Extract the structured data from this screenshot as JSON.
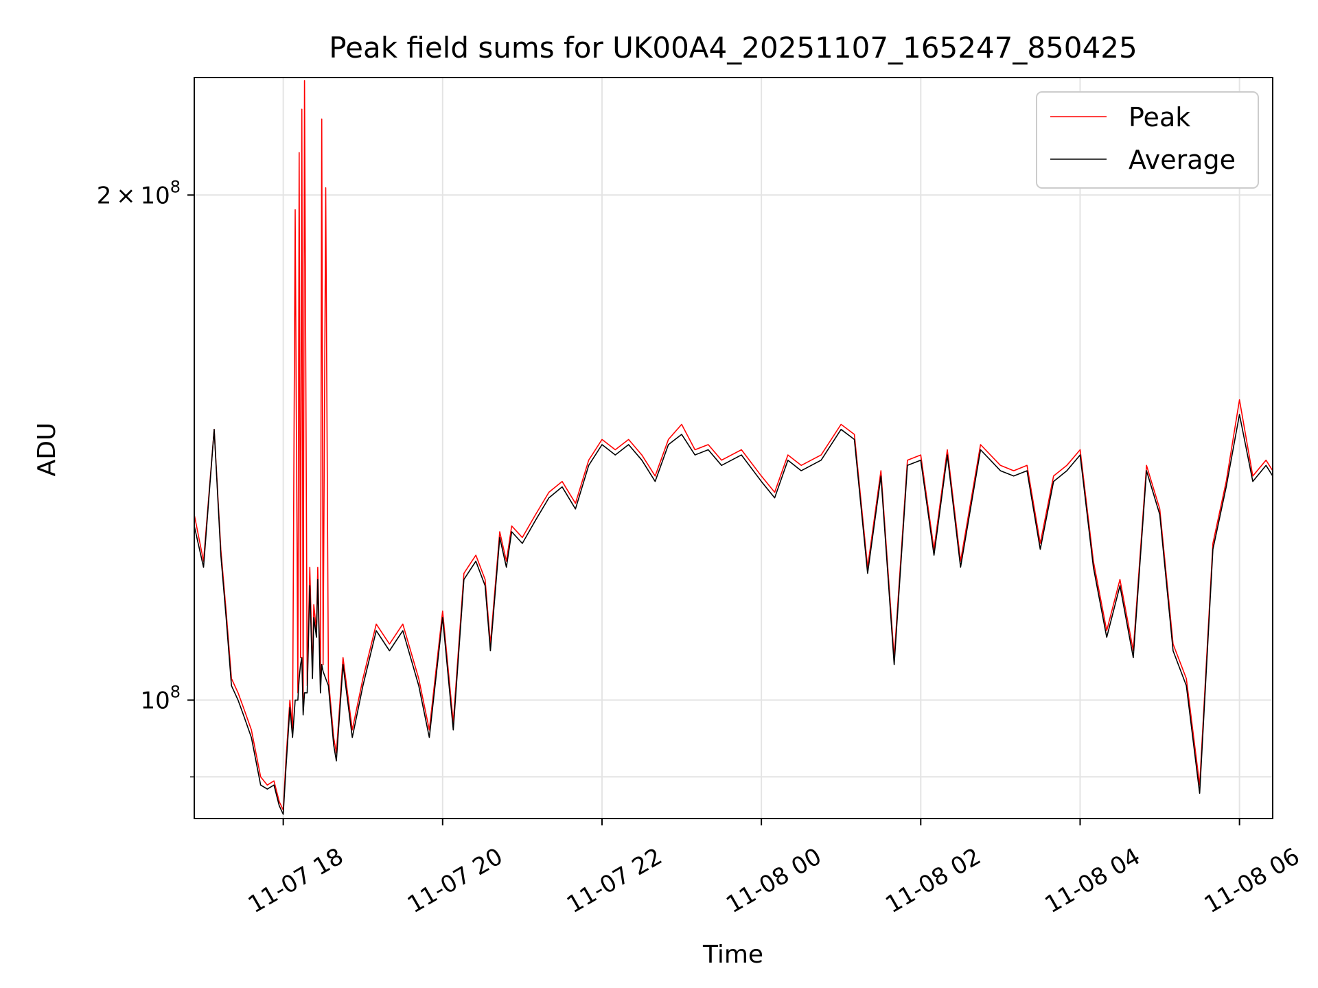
{
  "chart_data": {
    "type": "line",
    "title": "Peak field sums for UK00A4_20251107_165247_850425",
    "xlabel": "Time",
    "ylabel": "ADU",
    "y_scale": "log",
    "xlim": [
      "2025-11-07 16:53",
      "2025-11-08 06:25"
    ],
    "ylim": [
      85000000,
      235000000
    ],
    "grid": true,
    "legend_position": "top-right",
    "x_ticks": [
      {
        "value": "2025-11-07 18:00",
        "label": "11-07 18"
      },
      {
        "value": "2025-11-07 20:00",
        "label": "11-07 20"
      },
      {
        "value": "2025-11-07 22:00",
        "label": "11-07 22"
      },
      {
        "value": "2025-11-08 00:00",
        "label": "11-08 00"
      },
      {
        "value": "2025-11-08 02:00",
        "label": "11-08 02"
      },
      {
        "value": "2025-11-08 04:00",
        "label": "11-08 04"
      },
      {
        "value": "2025-11-08 06:00",
        "label": "11-08 06"
      }
    ],
    "y_ticks_major": [
      {
        "value": 100000000,
        "base": "10",
        "exponent": "8",
        "mantissa": ""
      },
      {
        "value": 200000000,
        "base": "10",
        "exponent": "8",
        "mantissa": "2"
      }
    ],
    "y_ticks_minor": [
      90000000
    ],
    "series": [
      {
        "name": "Peak",
        "color": "#ff0000",
        "x": [
          "2025-11-07 16:53",
          "2025-11-07 17:00",
          "2025-11-07 17:08",
          "2025-11-07 17:13",
          "2025-11-07 17:17",
          "2025-11-07 17:21",
          "2025-11-07 17:26",
          "2025-11-07 17:30",
          "2025-11-07 17:36",
          "2025-11-07 17:43",
          "2025-11-07 17:48",
          "2025-11-07 17:53",
          "2025-11-07 17:57",
          "2025-11-07 18:00",
          "2025-11-07 18:02",
          "2025-11-07 18:05",
          "2025-11-07 18:07",
          "2025-11-07 18:09",
          "2025-11-07 18:11",
          "2025-11-07 18:12",
          "2025-11-07 18:13",
          "2025-11-07 18:14",
          "2025-11-07 18:15",
          "2025-11-07 18:16",
          "2025-11-07 18:18",
          "2025-11-07 18:20",
          "2025-11-07 18:22",
          "2025-11-07 18:23",
          "2025-11-07 18:25",
          "2025-11-07 18:26",
          "2025-11-07 18:28",
          "2025-11-07 18:29",
          "2025-11-07 18:30",
          "2025-11-07 18:32",
          "2025-11-07 18:34",
          "2025-11-07 18:38",
          "2025-11-07 18:40",
          "2025-11-07 18:45",
          "2025-11-07 18:52",
          "2025-11-07 19:00",
          "2025-11-07 19:10",
          "2025-11-07 19:20",
          "2025-11-07 19:30",
          "2025-11-07 19:42",
          "2025-11-07 19:50",
          "2025-11-07 20:00",
          "2025-11-07 20:08",
          "2025-11-07 20:16",
          "2025-11-07 20:25",
          "2025-11-07 20:32",
          "2025-11-07 20:36",
          "2025-11-07 20:43",
          "2025-11-07 20:48",
          "2025-11-07 20:52",
          "2025-11-07 21:00",
          "2025-11-07 21:10",
          "2025-11-07 21:20",
          "2025-11-07 21:30",
          "2025-11-07 21:40",
          "2025-11-07 21:50",
          "2025-11-07 22:00",
          "2025-11-07 22:10",
          "2025-11-07 22:20",
          "2025-11-07 22:30",
          "2025-11-07 22:40",
          "2025-11-07 22:50",
          "2025-11-07 23:00",
          "2025-11-07 23:10",
          "2025-11-07 23:20",
          "2025-11-07 23:30",
          "2025-11-07 23:45",
          "2025-11-08 00:00",
          "2025-11-08 00:10",
          "2025-11-08 00:20",
          "2025-11-08 00:30",
          "2025-11-08 00:45",
          "2025-11-08 01:00",
          "2025-11-08 01:10",
          "2025-11-08 01:20",
          "2025-11-08 01:30",
          "2025-11-08 01:40",
          "2025-11-08 01:50",
          "2025-11-08 02:00",
          "2025-11-08 02:10",
          "2025-11-08 02:20",
          "2025-11-08 02:30",
          "2025-11-08 02:45",
          "2025-11-08 03:00",
          "2025-11-08 03:10",
          "2025-11-08 03:20",
          "2025-11-08 03:30",
          "2025-11-08 03:40",
          "2025-11-08 03:50",
          "2025-11-08 04:00",
          "2025-11-08 04:10",
          "2025-11-08 04:20",
          "2025-11-08 04:30",
          "2025-11-08 04:40",
          "2025-11-08 04:50",
          "2025-11-08 05:00",
          "2025-11-08 05:10",
          "2025-11-08 05:20",
          "2025-11-08 05:30",
          "2025-11-08 05:40",
          "2025-11-08 05:50",
          "2025-11-08 06:00",
          "2025-11-08 06:10",
          "2025-11-08 06:20",
          "2025-11-08 06:25"
        ],
        "values": [
          129000000,
          121000000,
          145000000,
          123000000,
          113000000,
          103000000,
          101000000,
          99000000,
          96000000,
          90000000,
          89000000,
          89500000,
          87000000,
          86000000,
          92000000,
          100000000,
          96000000,
          196000000,
          101000000,
          212000000,
          106000000,
          225000000,
          99000000,
          234000000,
          102000000,
          120000000,
          104000000,
          114000000,
          110000000,
          120000000,
          102000000,
          222000000,
          105000000,
          202000000,
          103000000,
          95000000,
          93000000,
          106000000,
          96000000,
          103000000,
          111000000,
          108000000,
          111000000,
          103000000,
          96000000,
          113000000,
          97000000,
          119000000,
          122000000,
          118000000,
          108000000,
          126000000,
          121000000,
          127000000,
          125000000,
          129000000,
          133000000,
          135000000,
          131000000,
          139000000,
          143000000,
          141000000,
          143000000,
          140000000,
          136000000,
          143000000,
          146000000,
          141000000,
          142000000,
          139000000,
          141000000,
          136000000,
          133000000,
          140000000,
          138000000,
          140000000,
          146000000,
          144000000,
          120000000,
          137000000,
          106000000,
          139000000,
          140000000,
          123000000,
          141000000,
          121000000,
          142000000,
          138000000,
          137000000,
          138000000,
          124000000,
          136000000,
          138000000,
          141000000,
          121000000,
          110000000,
          118000000,
          107000000,
          138000000,
          130000000,
          108000000,
          103000000,
          89000000,
          124000000,
          135000000,
          151000000,
          136000000,
          139000000,
          137000000
        ]
      },
      {
        "name": "Average",
        "color": "#000000",
        "x": [
          "2025-11-07 16:53",
          "2025-11-07 17:00",
          "2025-11-07 17:08",
          "2025-11-07 17:13",
          "2025-11-07 17:17",
          "2025-11-07 17:21",
          "2025-11-07 17:26",
          "2025-11-07 17:30",
          "2025-11-07 17:36",
          "2025-11-07 17:43",
          "2025-11-07 17:48",
          "2025-11-07 17:53",
          "2025-11-07 17:57",
          "2025-11-07 18:00",
          "2025-11-07 18:02",
          "2025-11-07 18:05",
          "2025-11-07 18:07",
          "2025-11-07 18:09",
          "2025-11-07 18:11",
          "2025-11-07 18:12",
          "2025-11-07 18:13",
          "2025-11-07 18:14",
          "2025-11-07 18:15",
          "2025-11-07 18:16",
          "2025-11-07 18:18",
          "2025-11-07 18:20",
          "2025-11-07 18:22",
          "2025-11-07 18:23",
          "2025-11-07 18:25",
          "2025-11-07 18:26",
          "2025-11-07 18:28",
          "2025-11-07 18:29",
          "2025-11-07 18:30",
          "2025-11-07 18:32",
          "2025-11-07 18:34",
          "2025-11-07 18:38",
          "2025-11-07 18:40",
          "2025-11-07 18:45",
          "2025-11-07 18:52",
          "2025-11-07 19:00",
          "2025-11-07 19:10",
          "2025-11-07 19:20",
          "2025-11-07 19:30",
          "2025-11-07 19:42",
          "2025-11-07 19:50",
          "2025-11-07 20:00",
          "2025-11-07 20:08",
          "2025-11-07 20:16",
          "2025-11-07 20:25",
          "2025-11-07 20:32",
          "2025-11-07 20:36",
          "2025-11-07 20:43",
          "2025-11-07 20:48",
          "2025-11-07 20:52",
          "2025-11-07 21:00",
          "2025-11-07 21:10",
          "2025-11-07 21:20",
          "2025-11-07 21:30",
          "2025-11-07 21:40",
          "2025-11-07 21:50",
          "2025-11-07 22:00",
          "2025-11-07 22:10",
          "2025-11-07 22:20",
          "2025-11-07 22:30",
          "2025-11-07 22:40",
          "2025-11-07 22:50",
          "2025-11-07 23:00",
          "2025-11-07 23:10",
          "2025-11-07 23:20",
          "2025-11-07 23:30",
          "2025-11-07 23:45",
          "2025-11-08 00:00",
          "2025-11-08 00:10",
          "2025-11-08 00:20",
          "2025-11-08 00:30",
          "2025-11-08 00:45",
          "2025-11-08 01:00",
          "2025-11-08 01:10",
          "2025-11-08 01:20",
          "2025-11-08 01:30",
          "2025-11-08 01:40",
          "2025-11-08 01:50",
          "2025-11-08 02:00",
          "2025-11-08 02:10",
          "2025-11-08 02:20",
          "2025-11-08 02:30",
          "2025-11-08 02:45",
          "2025-11-08 03:00",
          "2025-11-08 03:10",
          "2025-11-08 03:20",
          "2025-11-08 03:30",
          "2025-11-08 03:40",
          "2025-11-08 03:50",
          "2025-11-08 04:00",
          "2025-11-08 04:10",
          "2025-11-08 04:20",
          "2025-11-08 04:30",
          "2025-11-08 04:40",
          "2025-11-08 04:50",
          "2025-11-08 05:00",
          "2025-11-08 05:10",
          "2025-11-08 05:20",
          "2025-11-08 05:30",
          "2025-11-08 05:40",
          "2025-11-08 05:50",
          "2025-11-08 06:00",
          "2025-11-08 06:10",
          "2025-11-08 06:20",
          "2025-11-08 06:25"
        ],
        "values": [
          127000000,
          120000000,
          145000000,
          122000000,
          112000000,
          102000000,
          100000000,
          98000000,
          95000000,
          89000000,
          88500000,
          89000000,
          86500000,
          85500000,
          91000000,
          99000000,
          95000000,
          100000000,
          100000000,
          103000000,
          105000000,
          106000000,
          98000000,
          101000000,
          101000000,
          117000000,
          103000000,
          112000000,
          109000000,
          118000000,
          101000000,
          105000000,
          104000000,
          103000000,
          102000000,
          94000000,
          92000000,
          105000000,
          95000000,
          102000000,
          110000000,
          107000000,
          110000000,
          102000000,
          95000000,
          112000000,
          96000000,
          118000000,
          121000000,
          117000000,
          107000000,
          125000000,
          120000000,
          126000000,
          124000000,
          128000000,
          132000000,
          134000000,
          130000000,
          138000000,
          142000000,
          140000000,
          142000000,
          139000000,
          135000000,
          142000000,
          144000000,
          140000000,
          141000000,
          138000000,
          140000000,
          135000000,
          132000000,
          139000000,
          137000000,
          139000000,
          145000000,
          143000000,
          119000000,
          136000000,
          105000000,
          138000000,
          139000000,
          122000000,
          140000000,
          120000000,
          141000000,
          137000000,
          136000000,
          137000000,
          123000000,
          135000000,
          137000000,
          140000000,
          120000000,
          109000000,
          117000000,
          106000000,
          137000000,
          129000000,
          107000000,
          102000000,
          88000000,
          123000000,
          134000000,
          148000000,
          135000000,
          138000000,
          136000000
        ]
      }
    ]
  }
}
